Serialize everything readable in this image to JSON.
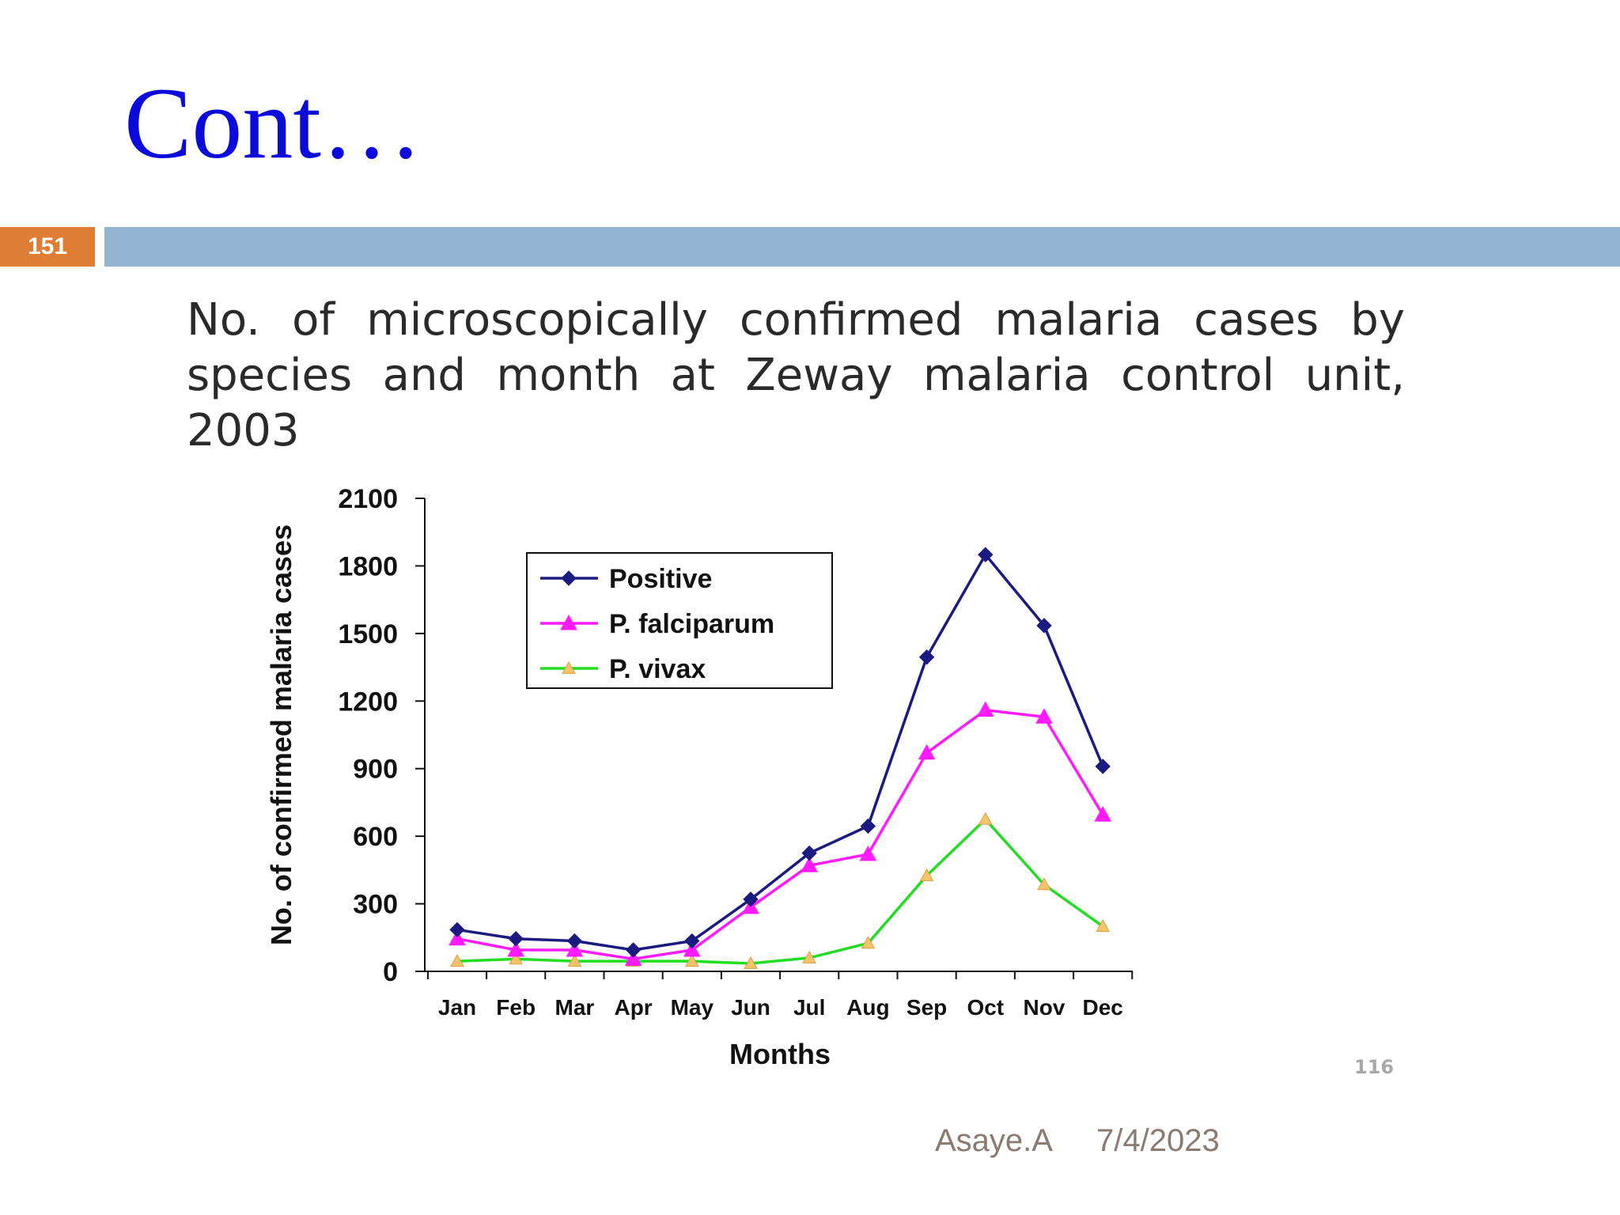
{
  "slide": {
    "title": "Cont…",
    "slide_number": "151",
    "subtitle": "No. of microscopically confirmed malaria cases by species and month at Zeway malaria control unit, 2003",
    "page_ref": "116",
    "footer_author": "Asaye.A",
    "footer_date": "7/4/2023"
  },
  "chart_data": {
    "type": "line",
    "title": "No. of microscopically confirmed malaria cases by species and month at Zeway malaria control unit, 2003",
    "xlabel": "Months",
    "ylabel": "No. of confirmed malaria cases",
    "categories": [
      "Jan",
      "Feb",
      "Mar",
      "Apr",
      "May",
      "Jun",
      "Jul",
      "Aug",
      "Sep",
      "Oct",
      "Nov",
      "Dec"
    ],
    "ylim": [
      0,
      2100
    ],
    "yticks": [
      0,
      300,
      600,
      900,
      1200,
      1500,
      1800,
      2100
    ],
    "grid": false,
    "legend_position": "top-left",
    "series": [
      {
        "name": "Positive",
        "color": "#1a1a80",
        "marker": "diamond",
        "values": [
          185,
          145,
          135,
          95,
          135,
          320,
          525,
          645,
          1395,
          1850,
          1535,
          910
        ]
      },
      {
        "name": "P. falciparum",
        "color": "#ff1aff",
        "marker": "triangle",
        "values": [
          145,
          95,
          95,
          55,
          95,
          285,
          470,
          520,
          970,
          1160,
          1130,
          695
        ]
      },
      {
        "name": "P. vivax",
        "color": "#22dd22",
        "marker_color": "#f5c46a",
        "marker": "triangle",
        "values": [
          45,
          55,
          45,
          45,
          45,
          35,
          60,
          125,
          425,
          675,
          385,
          200
        ]
      }
    ]
  }
}
